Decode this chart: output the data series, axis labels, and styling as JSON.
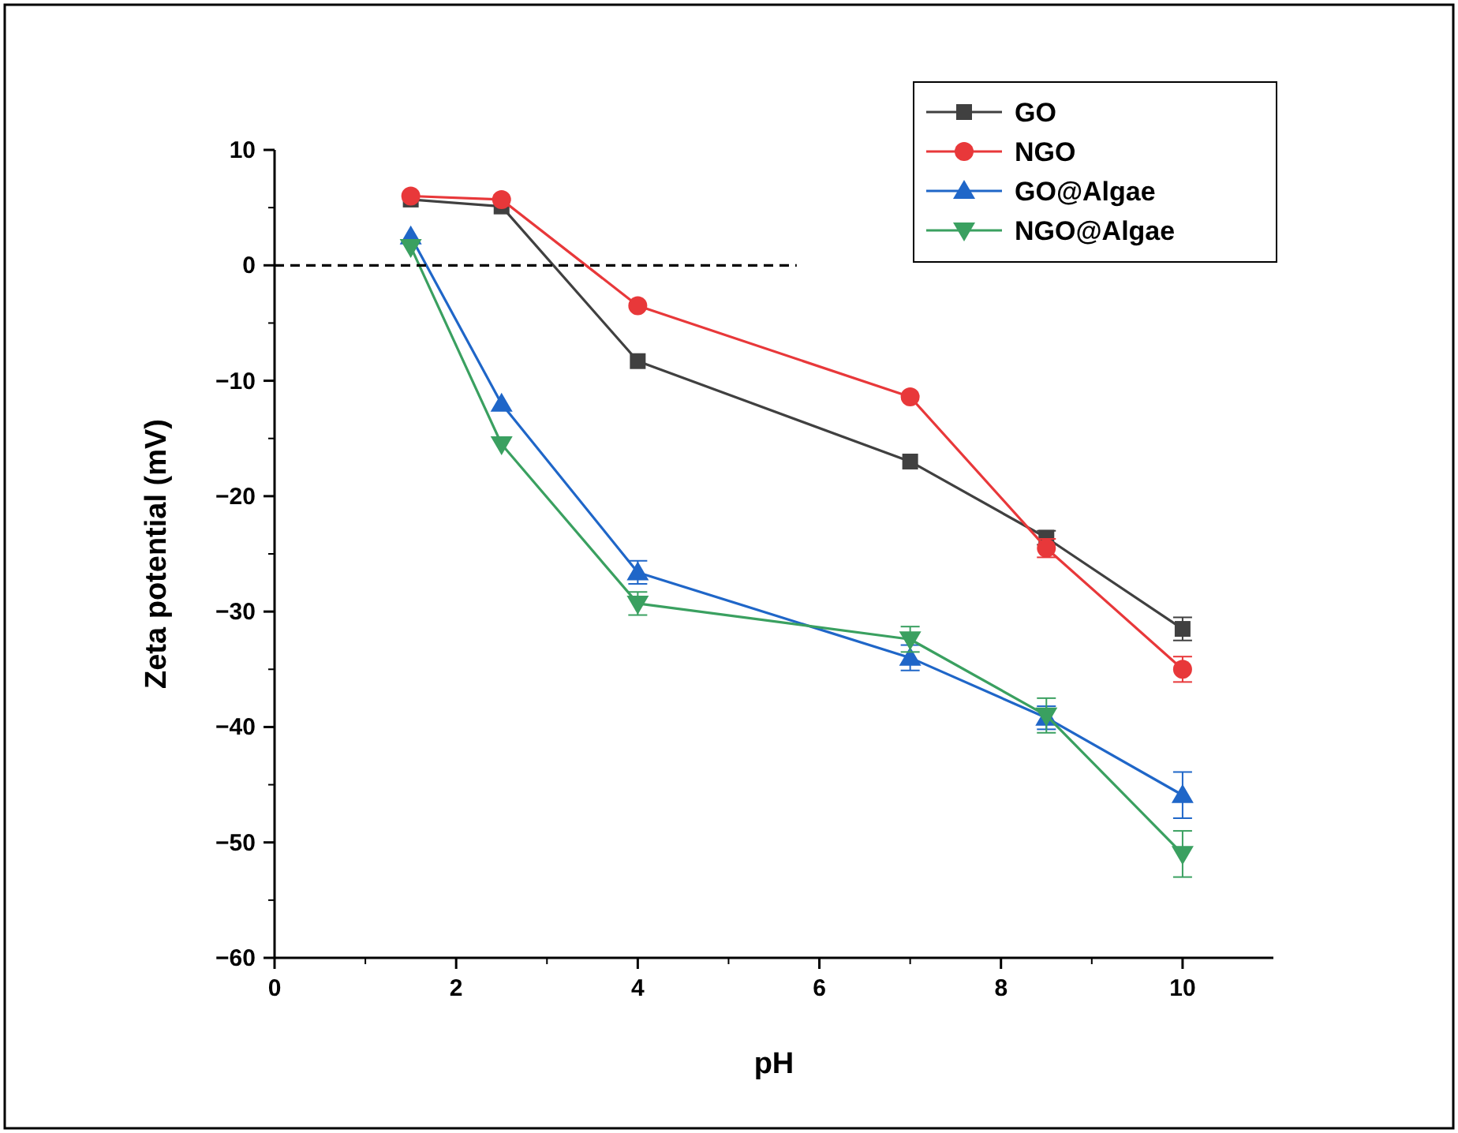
{
  "chart_data": {
    "type": "line",
    "xlabel": "pH",
    "ylabel": "Zeta potential (mV)",
    "xlim": [
      0,
      11
    ],
    "xticks": [
      0,
      2,
      4,
      6,
      8,
      10
    ],
    "ylim": [
      -60,
      10
    ],
    "yticks": [
      -60,
      -50,
      -40,
      -30,
      -20,
      -10,
      0,
      10
    ],
    "legend": "top right",
    "grid": false,
    "line_style": "solid",
    "series": [
      {
        "name": "GO",
        "color": "#404040",
        "marker": "square",
        "x": [
          1.5,
          2.5,
          4,
          7,
          8.5,
          10
        ],
        "values": [
          5.7,
          5.1,
          -8.3,
          -17,
          -23.6,
          -31.5
        ],
        "errors": [
          null,
          null,
          null,
          null,
          0.6,
          1
        ]
      },
      {
        "name": "NGO",
        "color": "#e8383a",
        "marker": "circle",
        "x": [
          1.5,
          2.5,
          4,
          7,
          8.5,
          10
        ],
        "values": [
          6,
          5.7,
          -3.5,
          -11.4,
          -24.5,
          -35
        ],
        "errors": [
          null,
          null,
          null,
          null,
          0.8,
          1.1
        ]
      },
      {
        "name": "GO@Algae",
        "color": "#1f66c8",
        "marker": "triangle",
        "x": [
          1.5,
          2.5,
          4,
          7,
          8.5,
          10
        ],
        "values": [
          2.5,
          -12,
          -26.6,
          -34,
          -39.2,
          -45.9
        ],
        "errors": [
          null,
          null,
          1,
          1.1,
          1,
          2
        ]
      },
      {
        "name": "NGO@Algae",
        "color": "#3aa060",
        "marker": "triangle-down",
        "x": [
          1.5,
          2.5,
          4,
          7,
          8.5,
          10
        ],
        "values": [
          1.6,
          -15.5,
          -29.3,
          -32.4,
          -39,
          -51
        ],
        "errors": [
          null,
          null,
          1,
          1.1,
          1.5,
          2
        ]
      },
      {
        "color": "#000000",
        "marker": "none",
        "line_style": "dashed",
        "x": [
          0,
          5.75
        ],
        "values": [
          0,
          0
        ]
      }
    ]
  }
}
